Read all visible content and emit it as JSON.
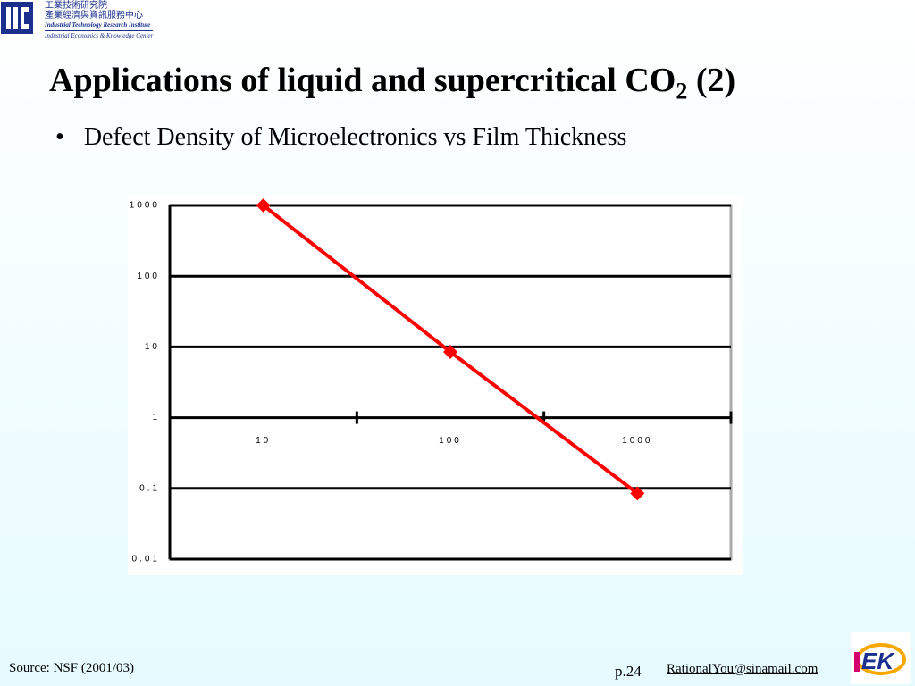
{
  "header": {
    "org_zh": "工業技術研究院",
    "org_zh2": "產業經濟與資訊服務中心",
    "org_en": "Industrial Technology Research Institute",
    "org_en2": "Industrial Economics & Knowledge Center"
  },
  "slide": {
    "title": "Applications of liquid and supercritical CO",
    "title_sub": "2",
    "title_end": " (2)",
    "bullet": "Defect Density of Microelectronics vs Film Thickness"
  },
  "footer": {
    "source": "Source: NSF (2001/03)",
    "page": "p.24",
    "email": "RationalYou@sinamail.com"
  },
  "chart_data": {
    "type": "line",
    "categories": [
      "10",
      "100",
      "1000"
    ],
    "series": [
      {
        "color": "#ff0000",
        "values": [
          1000,
          8.5,
          0.085
        ]
      }
    ],
    "ylim": [
      0.01,
      1000
    ],
    "yticks": [
      0.01,
      0.1,
      1,
      10,
      100,
      1000
    ],
    "log_y": true,
    "grid": true
  }
}
